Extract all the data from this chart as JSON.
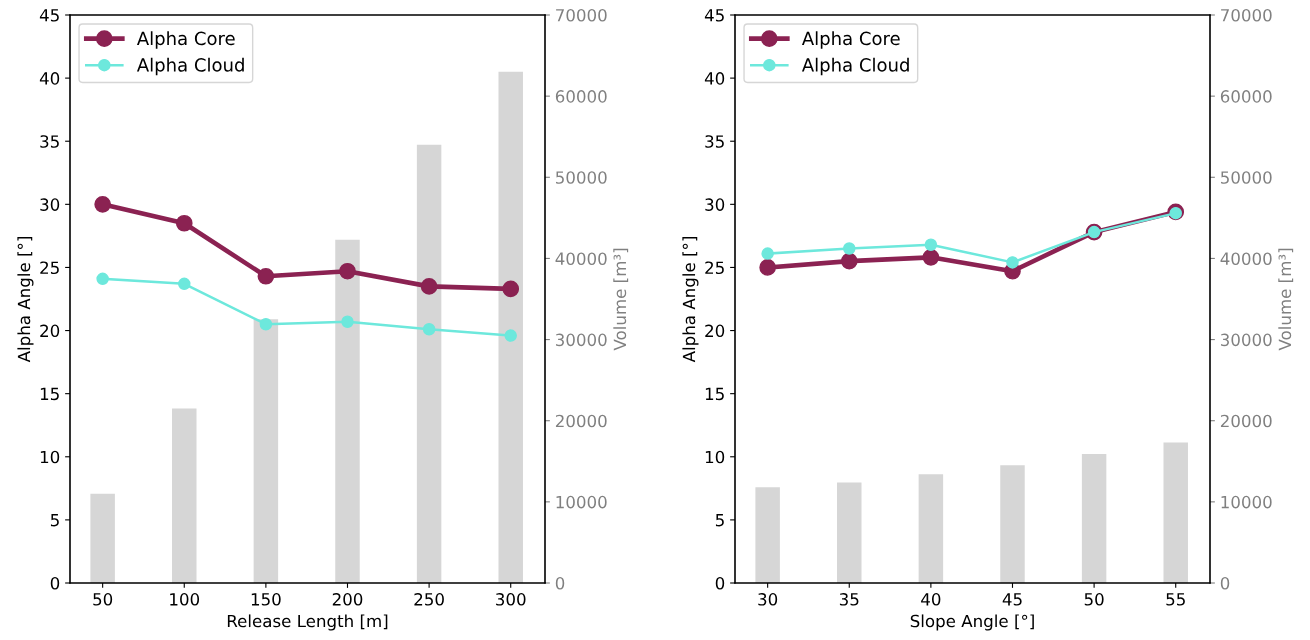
{
  "chart_data": [
    {
      "type": "line",
      "x": [
        50,
        100,
        150,
        200,
        250,
        300
      ],
      "xlabel": "Release Length [m]",
      "ylabel": "Alpha Angle [°]",
      "y2label": "Volume [m³]",
      "xlim": [
        30,
        321
      ],
      "xticks": [
        50,
        100,
        150,
        200,
        250,
        300
      ],
      "ylim": [
        0,
        45
      ],
      "yticks": [
        0,
        5,
        10,
        15,
        20,
        25,
        30,
        35,
        40,
        45
      ],
      "y2lim": [
        0,
        70000
      ],
      "y2ticks": [
        0,
        10000,
        20000,
        30000,
        40000,
        50000,
        60000,
        70000
      ],
      "marker": "circle",
      "legend": "top left",
      "grid": false,
      "series": [
        {
          "type": "bar",
          "axis": "y2",
          "color": "#d6d6d6",
          "values": [
            11000,
            21500,
            32500,
            42300,
            54000,
            63000
          ]
        },
        {
          "name": "Alpha Core",
          "color": "#8b2252",
          "values": [
            30.0,
            28.5,
            24.3,
            24.7,
            23.5,
            23.3
          ]
        },
        {
          "name": "Alpha Cloud",
          "color": "#6de8dc",
          "values": [
            24.1,
            23.7,
            20.5,
            20.7,
            20.1,
            19.6
          ]
        }
      ]
    },
    {
      "type": "line",
      "x": [
        30,
        35,
        40,
        45,
        50,
        55
      ],
      "xlabel": "Slope Angle [°]",
      "ylabel": "Alpha Angle [°]",
      "y2label": "Volume [m³]",
      "xlim": [
        28,
        57.1
      ],
      "xticks": [
        30,
        35,
        40,
        45,
        50,
        55
      ],
      "ylim": [
        0,
        45
      ],
      "yticks": [
        0,
        5,
        10,
        15,
        20,
        25,
        30,
        35,
        40,
        45
      ],
      "y2lim": [
        0,
        70000
      ],
      "y2ticks": [
        0,
        10000,
        20000,
        30000,
        40000,
        50000,
        60000,
        70000
      ],
      "marker": "circle",
      "legend": "top left",
      "grid": false,
      "series": [
        {
          "type": "bar",
          "axis": "y2",
          "color": "#d6d6d6",
          "values": [
            11800,
            12400,
            13400,
            14500,
            15900,
            17300
          ]
        },
        {
          "name": "Alpha Core",
          "color": "#8b2252",
          "values": [
            25.0,
            25.5,
            25.8,
            24.7,
            27.8,
            29.4
          ]
        },
        {
          "name": "Alpha Cloud",
          "color": "#6de8dc",
          "values": [
            26.1,
            26.5,
            26.8,
            25.4,
            27.8,
            29.3
          ]
        }
      ]
    }
  ]
}
